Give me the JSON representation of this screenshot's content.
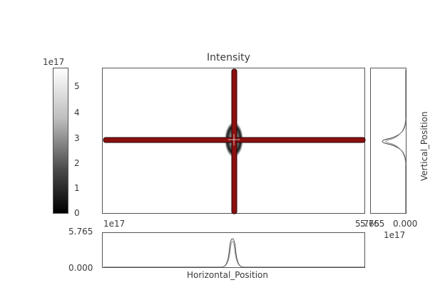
{
  "plot_title": "Intensity",
  "colorbar": {
    "exponent": "1e17",
    "ticks": [
      "0",
      "1",
      "2",
      "3",
      "4",
      "5"
    ]
  },
  "main": {
    "x_min_label": "1e17",
    "x_max_label": "5.765"
  },
  "right_profile": {
    "axis_label": "Vertical_Position",
    "tick_left": "5.765",
    "tick_right": "0.000",
    "exponent": "1e17"
  },
  "bottom_profile": {
    "axis_label": "Horizontal_Position",
    "tick_top": "5.765",
    "tick_bottom": "0.000"
  },
  "colors": {
    "crosshair": "#8b1010",
    "frame": "#555555",
    "profile_line": "#444444"
  }
}
